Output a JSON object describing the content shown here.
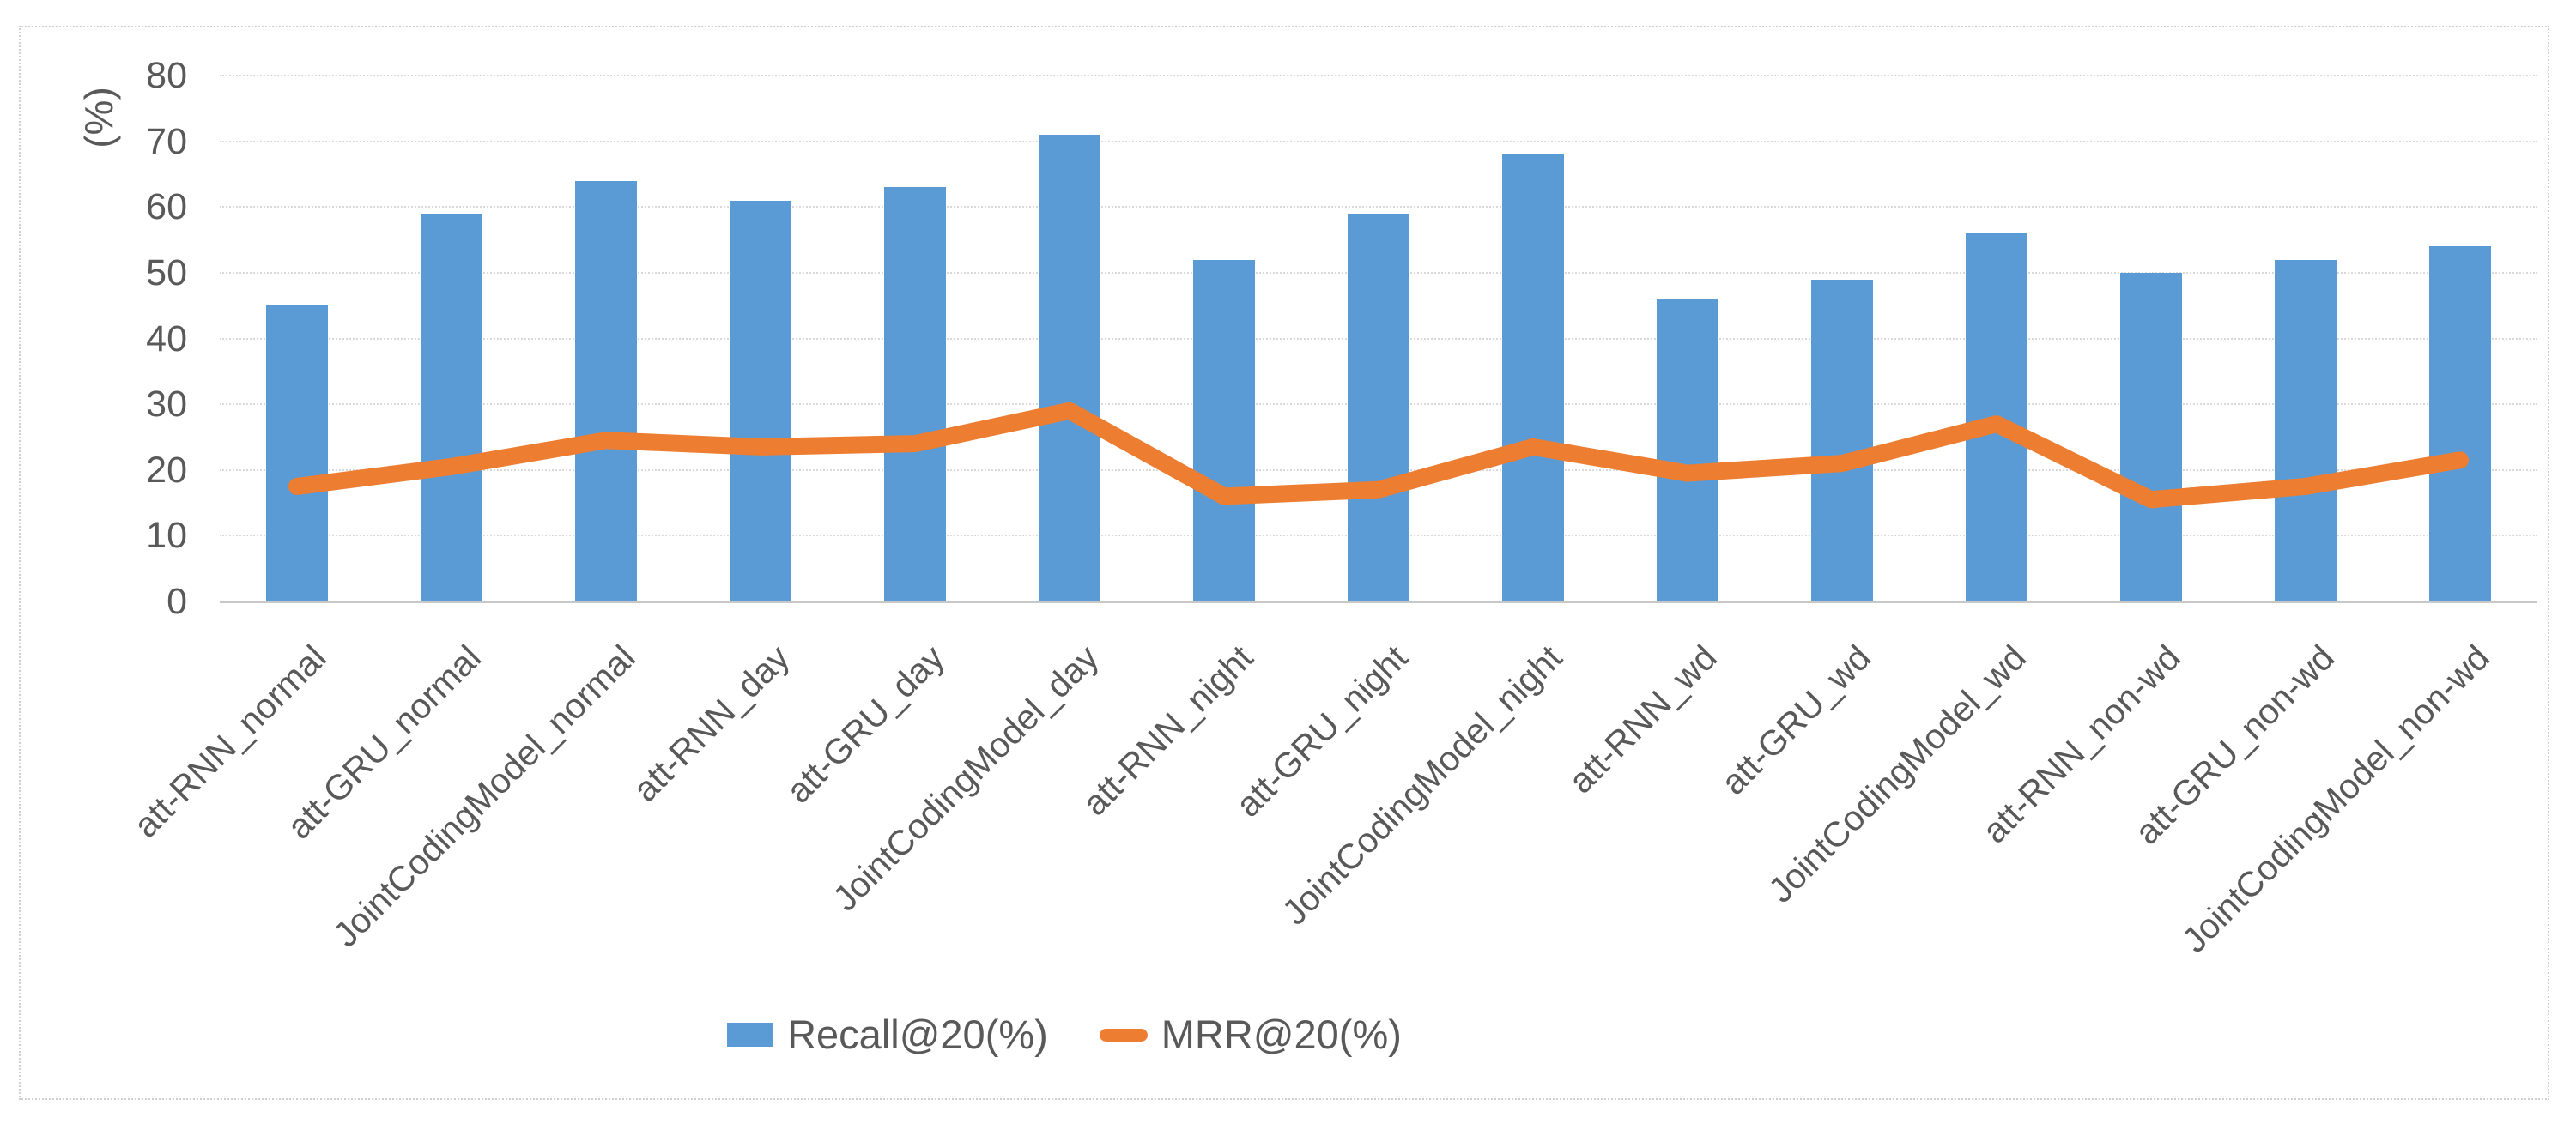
{
  "figure": {
    "background": "#ffffff",
    "border_color": "#cfcfcf"
  },
  "chart_data": {
    "type": "combo",
    "categories": [
      "att-RNN_normal",
      "att-GRU_normal",
      "JointCodingModel_normal",
      "att-RNN_day",
      "att-GRU_day",
      "JointCodingModel_day",
      "att-RNN_night",
      "att-GRU_night",
      "JointCodingModel_night",
      "att-RNN_wd",
      "att-GRU_wd",
      "JointCodingModel_wd",
      "att-RNN_non-wd",
      "att-GRU_non-wd",
      "JointCodingModel_non-wd"
    ],
    "series": [
      {
        "name": "Recall@20(%)",
        "type": "bar",
        "color": "#5b9bd5",
        "values": [
          45,
          59,
          64,
          61,
          63,
          71,
          52,
          59,
          68,
          46,
          49,
          56,
          50,
          52,
          54
        ]
      },
      {
        "name": "MRR@20(%)",
        "type": "line",
        "color": "#ed7d31",
        "values": [
          17.5,
          20.5,
          24.5,
          23.5,
          24,
          29,
          16,
          17,
          23.5,
          19.5,
          21,
          27,
          15.5,
          17.5,
          21.5
        ]
      }
    ],
    "title": "",
    "xlabel": "",
    "ylabel": "(%)",
    "ylim": [
      0,
      80
    ],
    "yticks": [
      0,
      10,
      20,
      30,
      40,
      50,
      60,
      70,
      80
    ],
    "grid": "horizontal-dotted",
    "legend_position": "bottom",
    "text_color": "#595959",
    "gridline_color": "#d9d9d9",
    "axis_color": "#c8c8c8"
  }
}
